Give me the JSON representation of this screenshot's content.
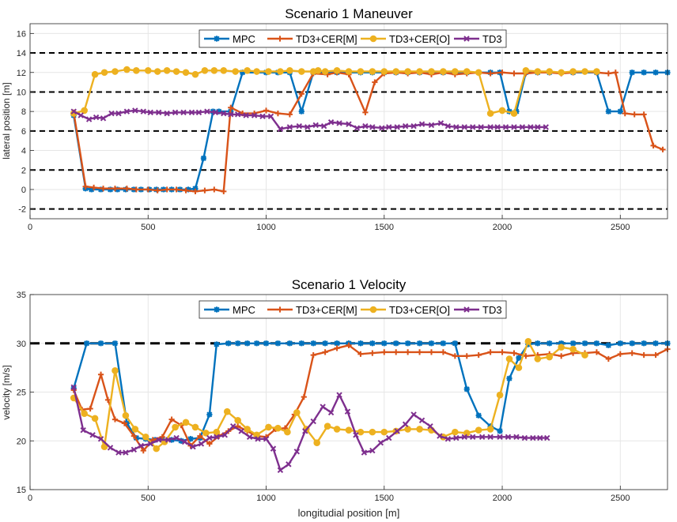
{
  "colors": {
    "MPC": "#0072BD",
    "TD3+CER[M]": "#D95319",
    "TD3+CER[O]": "#EDB120",
    "TD3": "#7E2F8E",
    "reference": "#000000",
    "grid": "#e6e6e6"
  },
  "chart_data": [
    {
      "type": "line",
      "title": "Scenario 1 Maneuver",
      "xlabel": "",
      "ylabel": "lateral position [m]",
      "xlim": [
        0,
        2700
      ],
      "ylim": [
        -3,
        17
      ],
      "xticks": [
        0,
        500,
        1000,
        1500,
        2000,
        2500
      ],
      "yticks": [
        -2,
        0,
        2,
        4,
        6,
        8,
        10,
        12,
        14,
        16
      ],
      "grid": true,
      "legend_position": "top-center",
      "reference_lines": [
        -2,
        2,
        6,
        10,
        14
      ],
      "series": [
        {
          "name": "MPC",
          "marker": "asterisk",
          "x": [
            185,
            235,
            260,
            300,
            340,
            370,
            405,
            440,
            470,
            505,
            535,
            565,
            600,
            635,
            670,
            700,
            735,
            775,
            800,
            850,
            900,
            1000,
            1050,
            1100,
            1150,
            1200,
            1250,
            1300,
            1350,
            1400,
            1450,
            1500,
            1550,
            1600,
            1650,
            1700,
            1750,
            1800,
            1850,
            1900,
            1950,
            1990,
            2030,
            2060,
            2100,
            2150,
            2200,
            2300,
            2400,
            2450,
            2500,
            2550,
            2600,
            2650,
            2700
          ],
          "values": [
            7.6,
            0.1,
            0,
            0,
            0,
            0,
            0,
            0,
            0,
            0,
            0,
            0,
            0,
            0,
            0,
            0.1,
            3.2,
            8,
            8,
            8,
            12,
            12,
            12,
            12,
            8,
            12,
            12,
            12,
            12,
            12,
            12,
            12,
            12,
            12,
            12,
            12,
            12,
            12,
            12,
            12,
            12,
            12,
            8,
            8,
            12,
            12,
            12,
            12,
            12,
            8,
            8,
            12,
            12,
            12,
            12
          ]
        },
        {
          "name": "TD3+CER[M]",
          "marker": "plus",
          "x": [
            185,
            235,
            270,
            310,
            360,
            410,
            450,
            500,
            540,
            580,
            620,
            660,
            700,
            740,
            780,
            820,
            850,
            900,
            950,
            1000,
            1050,
            1100,
            1150,
            1200,
            1260,
            1300,
            1350,
            1420,
            1460,
            1500,
            1550,
            1600,
            1650,
            1700,
            1750,
            1800,
            1850,
            1900,
            1950,
            2000,
            2050,
            2100,
            2150,
            2200,
            2250,
            2300,
            2350,
            2400,
            2450,
            2480,
            2520,
            2560,
            2600,
            2640,
            2680
          ],
          "values": [
            7.9,
            0.3,
            0.2,
            0.1,
            0.1,
            0.1,
            0,
            0,
            -0.1,
            0,
            0,
            -0.1,
            -0.2,
            -0.1,
            0,
            -0.2,
            8.4,
            7.8,
            7.8,
            8.1,
            7.8,
            7.7,
            9.8,
            11.9,
            11.8,
            12,
            11.8,
            7.9,
            11,
            11.9,
            12,
            11.9,
            12,
            11.8,
            12,
            11.8,
            11.9,
            12,
            11.9,
            12,
            11.9,
            11.9,
            12,
            12,
            11.9,
            12,
            12.1,
            12,
            11.9,
            12,
            7.8,
            7.7,
            7.7,
            4.5,
            4.1
          ]
        },
        {
          "name": "TD3+CER[O]",
          "marker": "circle",
          "x": [
            185,
            230,
            275,
            315,
            360,
            410,
            450,
            500,
            540,
            580,
            620,
            660,
            700,
            740,
            780,
            820,
            870,
            920,
            960,
            1010,
            1060,
            1100,
            1150,
            1200,
            1220,
            1250,
            1300,
            1350,
            1400,
            1450,
            1500,
            1550,
            1600,
            1650,
            1700,
            1750,
            1800,
            1850,
            1900,
            1950,
            2000,
            2050,
            2100,
            2150,
            2200,
            2250,
            2300,
            2350,
            2400
          ],
          "values": [
            7.8,
            8.1,
            11.8,
            12,
            12.1,
            12.3,
            12.2,
            12.2,
            12.1,
            12.2,
            12.1,
            12,
            11.8,
            12.2,
            12.2,
            12.2,
            12.1,
            12.2,
            12.1,
            12.1,
            12.1,
            12.2,
            12.1,
            12.1,
            12.2,
            12.1,
            12.2,
            12.1,
            12.1,
            12.1,
            12.1,
            12.1,
            12.1,
            12.1,
            12.1,
            12.1,
            12.1,
            12.1,
            12,
            7.8,
            8.1,
            7.8,
            12.2,
            12.1,
            12.1,
            12,
            12.1,
            12.1,
            12.1
          ]
        },
        {
          "name": "TD3",
          "marker": "x",
          "x": [
            185,
            215,
            250,
            280,
            310,
            345,
            375,
            410,
            445,
            480,
            510,
            545,
            580,
            615,
            650,
            685,
            715,
            750,
            785,
            820,
            850,
            880,
            915,
            950,
            985,
            1020,
            1060,
            1100,
            1140,
            1175,
            1210,
            1245,
            1275,
            1310,
            1350,
            1385,
            1420,
            1450,
            1490,
            1520,
            1555,
            1590,
            1625,
            1660,
            1700,
            1740,
            1770,
            1805,
            1840,
            1875,
            1910,
            1950,
            1980,
            2015,
            2050,
            2085,
            2120,
            2150,
            2185
          ],
          "values": [
            8,
            7.6,
            7.2,
            7.4,
            7.3,
            7.8,
            7.8,
            8,
            8.1,
            8,
            7.9,
            7.9,
            7.8,
            7.9,
            7.9,
            7.9,
            7.9,
            8,
            7.9,
            7.8,
            7.7,
            7.7,
            7.6,
            7.6,
            7.5,
            7.5,
            6.2,
            6.4,
            6.5,
            6.4,
            6.6,
            6.5,
            6.9,
            6.8,
            6.7,
            6.3,
            6.5,
            6.4,
            6.3,
            6.4,
            6.4,
            6.5,
            6.5,
            6.7,
            6.6,
            6.8,
            6.5,
            6.4,
            6.4,
            6.4,
            6.4,
            6.4,
            6.4,
            6.4,
            6.4,
            6.4,
            6.4,
            6.4,
            6.4
          ]
        }
      ]
    },
    {
      "type": "line",
      "title": "Scenario 1 Velocity",
      "xlabel": "longitudial position [m]",
      "ylabel": "velocity [m/s]",
      "xlim": [
        0,
        2700
      ],
      "ylim": [
        15,
        35
      ],
      "xticks": [
        0,
        500,
        1000,
        1500,
        2000,
        2500
      ],
      "yticks": [
        15,
        20,
        25,
        30,
        35
      ],
      "grid": true,
      "legend_position": "top-center",
      "reference_lines": [
        30
      ],
      "series": [
        {
          "name": "MPC",
          "marker": "asterisk",
          "x": [
            185,
            240,
            300,
            360,
            410,
            450,
            490,
            530,
            560,
            600,
            640,
            680,
            720,
            760,
            790,
            840,
            880,
            920,
            960,
            1000,
            1050,
            1100,
            1150,
            1200,
            1250,
            1300,
            1350,
            1400,
            1450,
            1500,
            1550,
            1600,
            1650,
            1700,
            1750,
            1800,
            1850,
            1900,
            1950,
            1990,
            2030,
            2070,
            2110,
            2150,
            2200,
            2250,
            2300,
            2350,
            2400,
            2450,
            2500,
            2550,
            2600,
            2650,
            2700
          ],
          "values": [
            25.4,
            30,
            30,
            30,
            21.8,
            20.3,
            20.2,
            20.1,
            20.1,
            20.1,
            20,
            20.2,
            20.3,
            22.7,
            29.9,
            30,
            30,
            30,
            30,
            30,
            30,
            30,
            30,
            30,
            30,
            30,
            30,
            30,
            30,
            30,
            30,
            30,
            30,
            30,
            30,
            30,
            25.3,
            22.6,
            21.5,
            21,
            26.4,
            28.5,
            29.9,
            30,
            30,
            30,
            30,
            30,
            30,
            29.8,
            30,
            30,
            30,
            30,
            30
          ]
        },
        {
          "name": "TD3+CER[M]",
          "marker": "plus",
          "x": [
            185,
            220,
            255,
            300,
            330,
            360,
            400,
            440,
            480,
            520,
            560,
            600,
            640,
            680,
            720,
            760,
            800,
            840,
            880,
            920,
            960,
            1000,
            1040,
            1080,
            1120,
            1160,
            1200,
            1250,
            1300,
            1350,
            1400,
            1450,
            1500,
            1550,
            1600,
            1650,
            1700,
            1750,
            1800,
            1850,
            1900,
            1950,
            2000,
            2050,
            2100,
            2150,
            2200,
            2250,
            2300,
            2350,
            2400,
            2450,
            2500,
            2550,
            2600,
            2650,
            2700
          ],
          "values": [
            25.2,
            23.2,
            23.3,
            26.8,
            24.2,
            22.2,
            21.8,
            20.5,
            19,
            20.1,
            20.4,
            22.2,
            21.6,
            19.5,
            20.5,
            19.7,
            20.5,
            21,
            21.5,
            21,
            20.5,
            20.4,
            21.2,
            21.3,
            22.7,
            24.5,
            28.8,
            29.1,
            29.5,
            29.8,
            28.9,
            29,
            29.1,
            29.1,
            29.1,
            29.1,
            29.1,
            29.1,
            28.7,
            28.7,
            28.8,
            29.1,
            29.1,
            29,
            28.7,
            28.8,
            28.9,
            28.7,
            29,
            29,
            29.1,
            28.4,
            28.9,
            29,
            28.8,
            28.8,
            29.4
          ]
        },
        {
          "name": "TD3+CER[O]",
          "marker": "circle",
          "x": [
            185,
            230,
            275,
            315,
            360,
            405,
            445,
            490,
            535,
            570,
            615,
            660,
            700,
            745,
            790,
            835,
            880,
            920,
            960,
            1010,
            1050,
            1090,
            1130,
            1170,
            1215,
            1260,
            1300,
            1350,
            1400,
            1450,
            1500,
            1550,
            1600,
            1650,
            1700,
            1750,
            1800,
            1850,
            1900,
            1950,
            1990,
            2030,
            2070,
            2110,
            2150,
            2200,
            2250,
            2300,
            2350
          ],
          "values": [
            24.4,
            22.8,
            22.3,
            19.4,
            27.2,
            22.6,
            21.2,
            20.4,
            19.2,
            19.9,
            21.4,
            21.9,
            21.4,
            20.8,
            20.9,
            23,
            22.1,
            21.2,
            20.6,
            21.4,
            21.3,
            20.9,
            22.9,
            21.2,
            19.8,
            21.5,
            21.2,
            21.1,
            20.9,
            20.9,
            20.9,
            21,
            21.2,
            21.2,
            21.1,
            20.4,
            20.9,
            20.8,
            21.1,
            21.2,
            24.7,
            28.4,
            27.5,
            30.2,
            28.4,
            28.6,
            29.6,
            29.4,
            28.8
          ]
        },
        {
          "name": "TD3",
          "marker": "x",
          "x": [
            185,
            225,
            265,
            300,
            340,
            375,
            405,
            440,
            470,
            510,
            545,
            585,
            620,
            655,
            690,
            725,
            760,
            790,
            825,
            860,
            895,
            930,
            965,
            1000,
            1030,
            1060,
            1095,
            1130,
            1165,
            1200,
            1240,
            1275,
            1310,
            1345,
            1380,
            1415,
            1450,
            1485,
            1520,
            1555,
            1590,
            1625,
            1660,
            1695,
            1735,
            1770,
            1805,
            1840,
            1875,
            1915,
            1950,
            1990,
            2025,
            2060,
            2095,
            2130,
            2160,
            2190
          ],
          "values": [
            25.5,
            21.1,
            20.6,
            20.2,
            19.3,
            18.8,
            18.8,
            19.1,
            19.5,
            19.7,
            20.1,
            20.1,
            20.3,
            19.9,
            19.4,
            19.7,
            20.3,
            20.4,
            20.6,
            21.5,
            21,
            20.4,
            20.2,
            20.2,
            19.2,
            17,
            17.6,
            18.9,
            21,
            22,
            23.5,
            22.9,
            24.7,
            23,
            20.6,
            18.8,
            19,
            19.8,
            20.3,
            21,
            21.7,
            22.7,
            22.1,
            21.5,
            20.5,
            20.2,
            20.3,
            20.4,
            20.4,
            20.4,
            20.4,
            20.4,
            20.4,
            20.4,
            20.3,
            20.3,
            20.3,
            20.3
          ]
        }
      ]
    }
  ]
}
